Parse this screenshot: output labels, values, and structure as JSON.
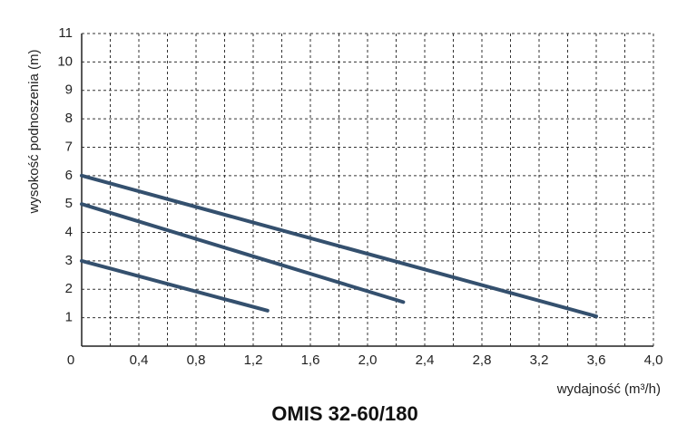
{
  "chart_data": {
    "type": "line",
    "title": "OMIS 32-60/180",
    "x_label": "wydajność (m³/h)",
    "y_label": "wysokość podnoszenia (m)",
    "series": [
      {
        "color": "#34506e",
        "x": [
          0,
          3.6
        ],
        "values": [
          6,
          1.05
        ]
      },
      {
        "color": "#34506e",
        "x": [
          0,
          2.25
        ],
        "values": [
          5,
          1.55
        ]
      },
      {
        "color": "#34506e",
        "x": [
          0,
          1.3
        ],
        "values": [
          3,
          1.25
        ]
      }
    ],
    "xlim": [
      0,
      4.0
    ],
    "xticks": [
      0,
      {
        "value": 0.4,
        "label": "0,4"
      },
      {
        "value": 0.8,
        "label": "0,8"
      },
      {
        "value": 1.2,
        "label": "1,2"
      },
      {
        "value": 1.6,
        "label": "1,6"
      },
      {
        "value": 2.0,
        "label": "2,0"
      },
      {
        "value": 2.4,
        "label": "2,4"
      },
      {
        "value": 2.8,
        "label": "2,8"
      },
      {
        "value": 3.2,
        "label": "3,2"
      },
      {
        "value": 3.6,
        "label": "3,6"
      },
      {
        "value": 4.0,
        "label": "4,0"
      }
    ],
    "xminorticks": [
      0.2,
      0.6,
      1.0,
      1.4,
      1.8,
      2.2,
      2.6,
      3.0,
      3.4,
      3.8
    ],
    "ylim": [
      0,
      11
    ],
    "yticks": [
      1,
      2,
      3,
      4,
      5,
      6,
      7,
      8,
      9,
      10,
      11
    ],
    "grid": true
  }
}
